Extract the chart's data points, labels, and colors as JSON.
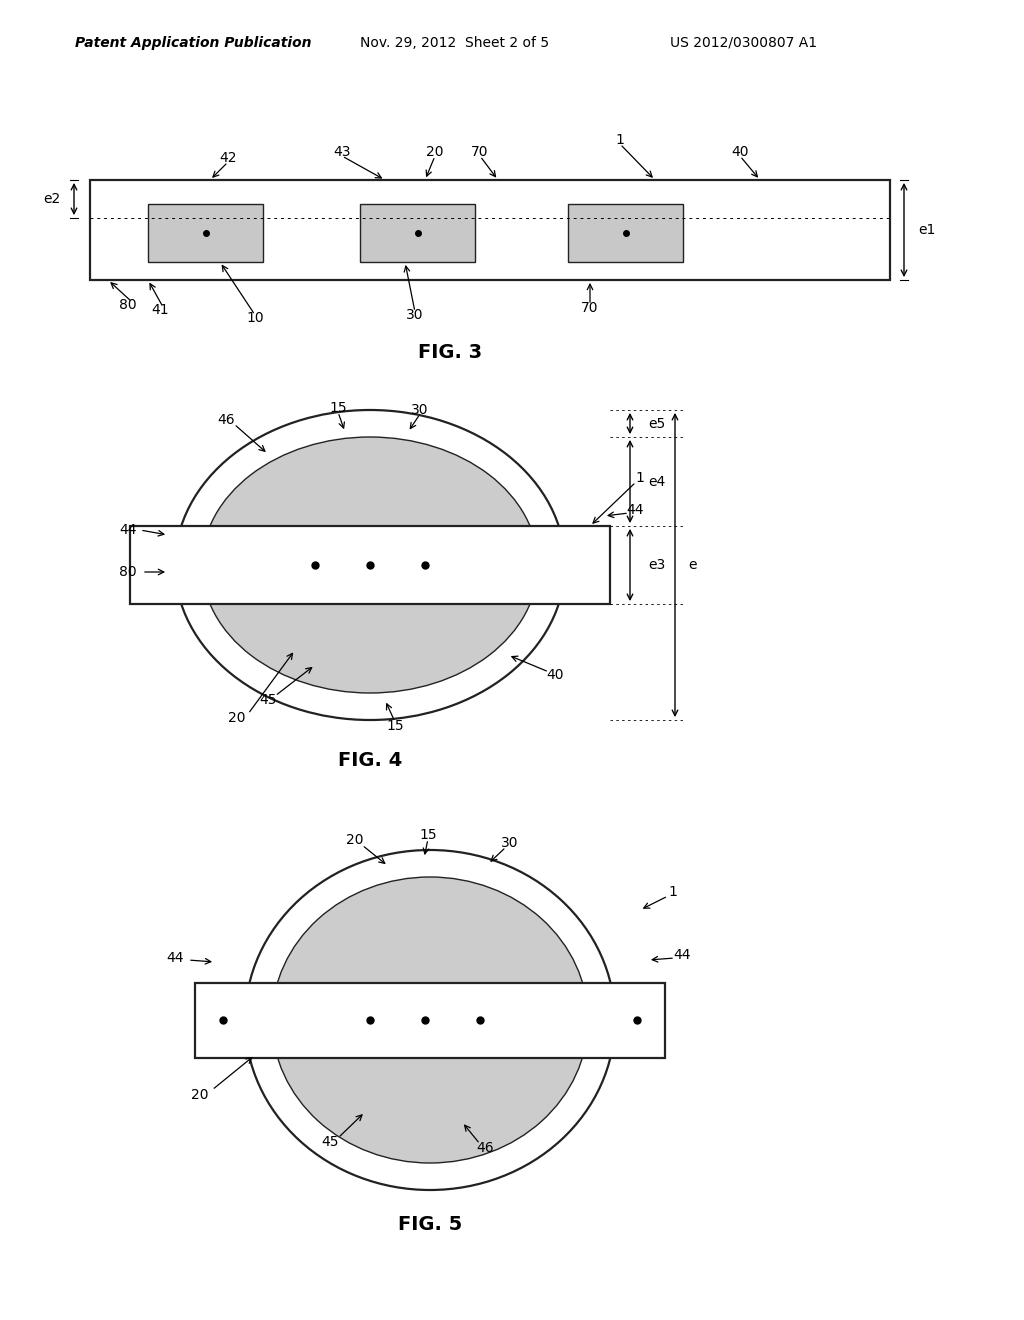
{
  "bg_color": "#ffffff",
  "header_left": "Patent Application Publication",
  "header_mid": "Nov. 29, 2012  Sheet 2 of 5",
  "header_right": "US 2012/0300807 A1",
  "fig3_caption": "FIG. 3",
  "fig4_caption": "FIG. 4",
  "fig5_caption": "FIG. 5",
  "box_fill": "#c8c8c8",
  "ellipse_fill": "#cccccc",
  "outline_color": "#222222",
  "lw_main": 1.6,
  "lw_thin": 1.0
}
